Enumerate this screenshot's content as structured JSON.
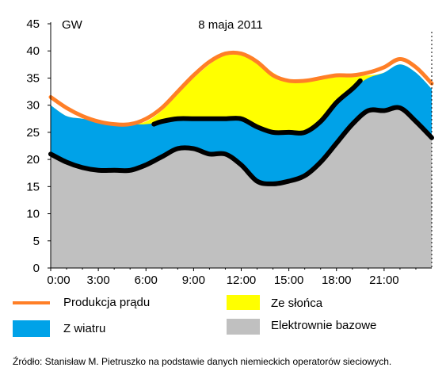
{
  "chart_data": {
    "type": "area",
    "title": "8 maja 2011",
    "ylabel": "GW",
    "xlabel": "",
    "ylim": [
      0,
      45
    ],
    "yticks": [
      0,
      5,
      10,
      15,
      20,
      25,
      30,
      35,
      40,
      45
    ],
    "xlim": [
      0,
      24
    ],
    "xticks": [
      "0:00",
      "3:00",
      "6:00",
      "9:00",
      "12:00",
      "15:00",
      "18:00",
      "21:00"
    ],
    "x": [
      0,
      1,
      2,
      3,
      4,
      5,
      6,
      7,
      8,
      9,
      10,
      11,
      12,
      13,
      14,
      15,
      16,
      17,
      18,
      19,
      20,
      21,
      22,
      23,
      24
    ],
    "series": [
      {
        "name": "Elektrownie bazowe",
        "color": "#c0c0c0",
        "values": [
          21,
          19.5,
          18.5,
          18,
          18,
          18,
          19,
          20.5,
          22,
          22,
          21,
          21,
          19,
          16,
          15.5,
          16,
          17,
          19.5,
          23,
          26.5,
          29,
          29,
          29.5,
          27,
          24
        ]
      },
      {
        "name": "Z wiatru",
        "color": "#00a2e8",
        "values": [
          30,
          28,
          27.5,
          27,
          26.5,
          26.5,
          26.5,
          27,
          27.5,
          27.5,
          27.5,
          27.5,
          27.5,
          26,
          25,
          25,
          25,
          27,
          30.5,
          33,
          35,
          36,
          37.5,
          36,
          33
        ]
      },
      {
        "name": "Ze słońca",
        "color": "#ffff00",
        "values": [
          30,
          28,
          27.5,
          27,
          26.5,
          26.5,
          27,
          29,
          32,
          35,
          37.5,
          39.5,
          39.5,
          38,
          36,
          34.5,
          34.5,
          35,
          35.5,
          35.5,
          35.5,
          36,
          37.5,
          36,
          33
        ]
      }
    ],
    "lines": [
      {
        "name": "Produkcja prądu",
        "color": "#ff7f27",
        "x": [
          0,
          1,
          2,
          3,
          4,
          5,
          6,
          7,
          8,
          9,
          10,
          11,
          12,
          13,
          14,
          15,
          16,
          17,
          18,
          19,
          20,
          21,
          22,
          23,
          24
        ],
        "values": [
          31.5,
          29.5,
          28,
          27,
          26.5,
          26.5,
          27.5,
          29.5,
          32.5,
          35.5,
          38,
          39.5,
          39.5,
          38,
          35.5,
          34.5,
          34.5,
          35,
          35.5,
          35.5,
          36,
          37,
          38.5,
          37,
          34
        ]
      },
      {
        "name": "",
        "color": "#000000",
        "x": [
          0,
          1,
          2,
          3,
          4,
          5,
          6,
          7,
          8,
          9,
          10,
          11,
          12,
          13,
          14,
          15,
          16,
          17,
          18,
          19,
          20,
          21,
          22,
          23,
          24
        ],
        "values": [
          21,
          19.5,
          18.5,
          18,
          18,
          18,
          19,
          20.5,
          22,
          22,
          21,
          21,
          19,
          16,
          15.5,
          16,
          17,
          19.5,
          23,
          26.5,
          29,
          29,
          29.5,
          27,
          24
        ]
      },
      {
        "name": "",
        "color": "#000000",
        "x": [
          6.5,
          7,
          8,
          9,
          10,
          11,
          12,
          13,
          14,
          15,
          16,
          17,
          18,
          19,
          19.5
        ],
        "values": [
          26.5,
          27,
          27.5,
          27.5,
          27.5,
          27.5,
          27.5,
          26,
          25,
          25,
          25,
          27,
          30.5,
          33,
          34.5
        ]
      }
    ],
    "legend": [
      {
        "label": "Produkcja prądu",
        "color": "#ff7f27",
        "kind": "line"
      },
      {
        "label": "Ze słońca",
        "color": "#ffff00",
        "kind": "box"
      },
      {
        "label": "Z wiatru",
        "color": "#00a2e8",
        "kind": "box"
      },
      {
        "label": "Elektrownie bazowe",
        "color": "#c0c0c0",
        "kind": "box"
      }
    ],
    "legend_position": "bottom",
    "grid": false
  },
  "source": "Źródło: Stanisław M. Pietruszko na podstawie danych niemieckich operatorów sieciowych."
}
